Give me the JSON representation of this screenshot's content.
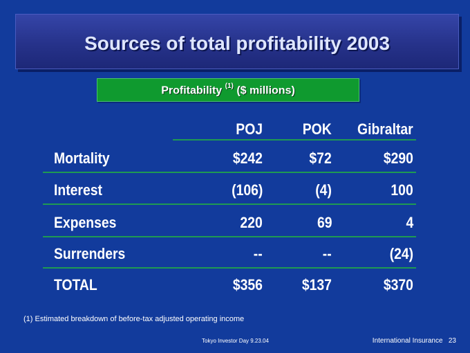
{
  "slide": {
    "title": "Sources of total profitability 2003",
    "subtitle_prefix": "Profitability",
    "subtitle_footnote_marker": "(1)",
    "subtitle_suffix": "($ millions)"
  },
  "table": {
    "columns": [
      "POJ",
      "POK",
      "Gibraltar"
    ],
    "rows": [
      {
        "label": "Mortality",
        "values": [
          "$242",
          "$72",
          "$290"
        ]
      },
      {
        "label": "Interest",
        "values": [
          "(106)",
          "(4)",
          "100"
        ]
      },
      {
        "label": "Expenses",
        "values": [
          "220",
          "69",
          "4"
        ]
      },
      {
        "label": "Surrenders",
        "values": [
          "--",
          "--",
          "(24)"
        ]
      },
      {
        "label": "TOTAL",
        "values": [
          "$356",
          "$137",
          "$370"
        ]
      }
    ]
  },
  "footnote": "(1)  Estimated breakdown of before-tax adjusted operating income",
  "footer": {
    "event": "Tokyo Investor Day 9.23.04",
    "section": "International Insurance",
    "page_number": "23"
  },
  "colors": {
    "background": "#123b9c",
    "title_box": "#26328a",
    "subtitle_box": "#0f9a2f",
    "rule": "#1f9a52",
    "text": "#ffffff"
  }
}
